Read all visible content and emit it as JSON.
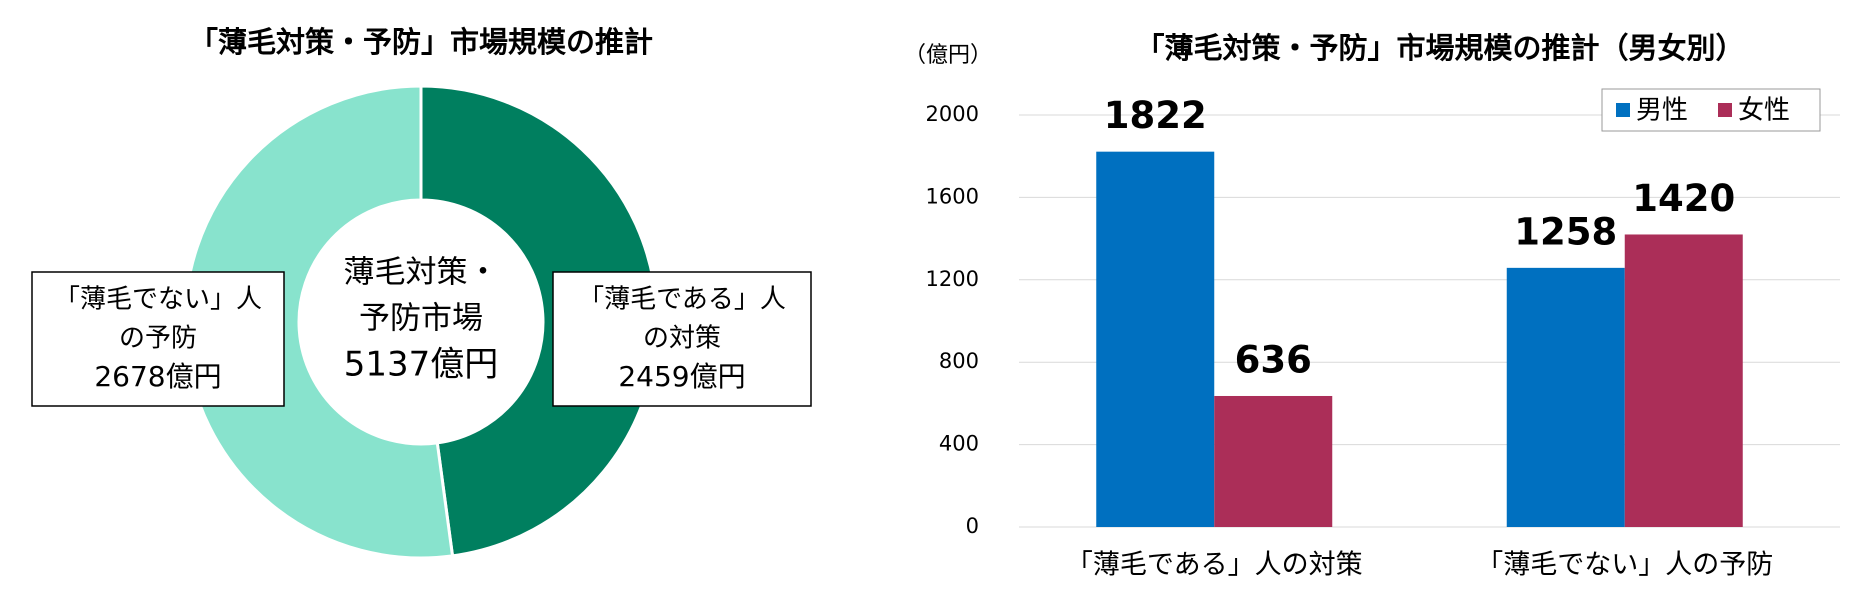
{
  "chart_data": [
    {
      "type": "donut",
      "title": "「薄毛対策・予防」市場規模の推計",
      "categories": [
        [
          "「薄毛である」人",
          "の対策"
        ],
        [
          "「薄毛でない」人",
          "の予防"
        ]
      ],
      "values": [
        2459,
        2678
      ],
      "value_labels": [
        "2459億円",
        "2678億円"
      ],
      "colors": [
        "#007f5f",
        "#88e3cd"
      ],
      "center_label": [
        "薄毛対策・",
        "予防市場",
        "5137億円"
      ]
    },
    {
      "type": "bar",
      "title": "「薄毛対策・予防」市場規模の推計（男女別）",
      "y_unit": "（億円）",
      "categories": [
        "「薄毛である」人の対策",
        "「薄毛でない」人の予防"
      ],
      "series": [
        {
          "name": "男性",
          "color": "#0070c0",
          "values": [
            1822,
            1258
          ]
        },
        {
          "name": "女性",
          "color": "#ab2e58",
          "values": [
            636,
            1420
          ]
        }
      ],
      "ylim": [
        0,
        2000
      ],
      "yticks": [
        0,
        400,
        800,
        1200,
        1600,
        2000
      ],
      "grid": true,
      "legend": "top-right"
    }
  ]
}
